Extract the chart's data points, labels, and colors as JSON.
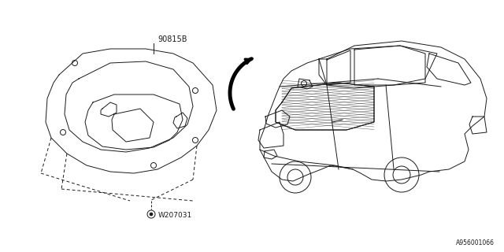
{
  "background_color": "#ffffff",
  "line_color": "#1a1a1a",
  "dashed_color": "#1a1a1a",
  "label_90815B": "90815B",
  "label_W207031": "W207031",
  "diagram_id": "A956001066",
  "fig_width": 6.4,
  "fig_height": 3.2,
  "dpi": 100
}
